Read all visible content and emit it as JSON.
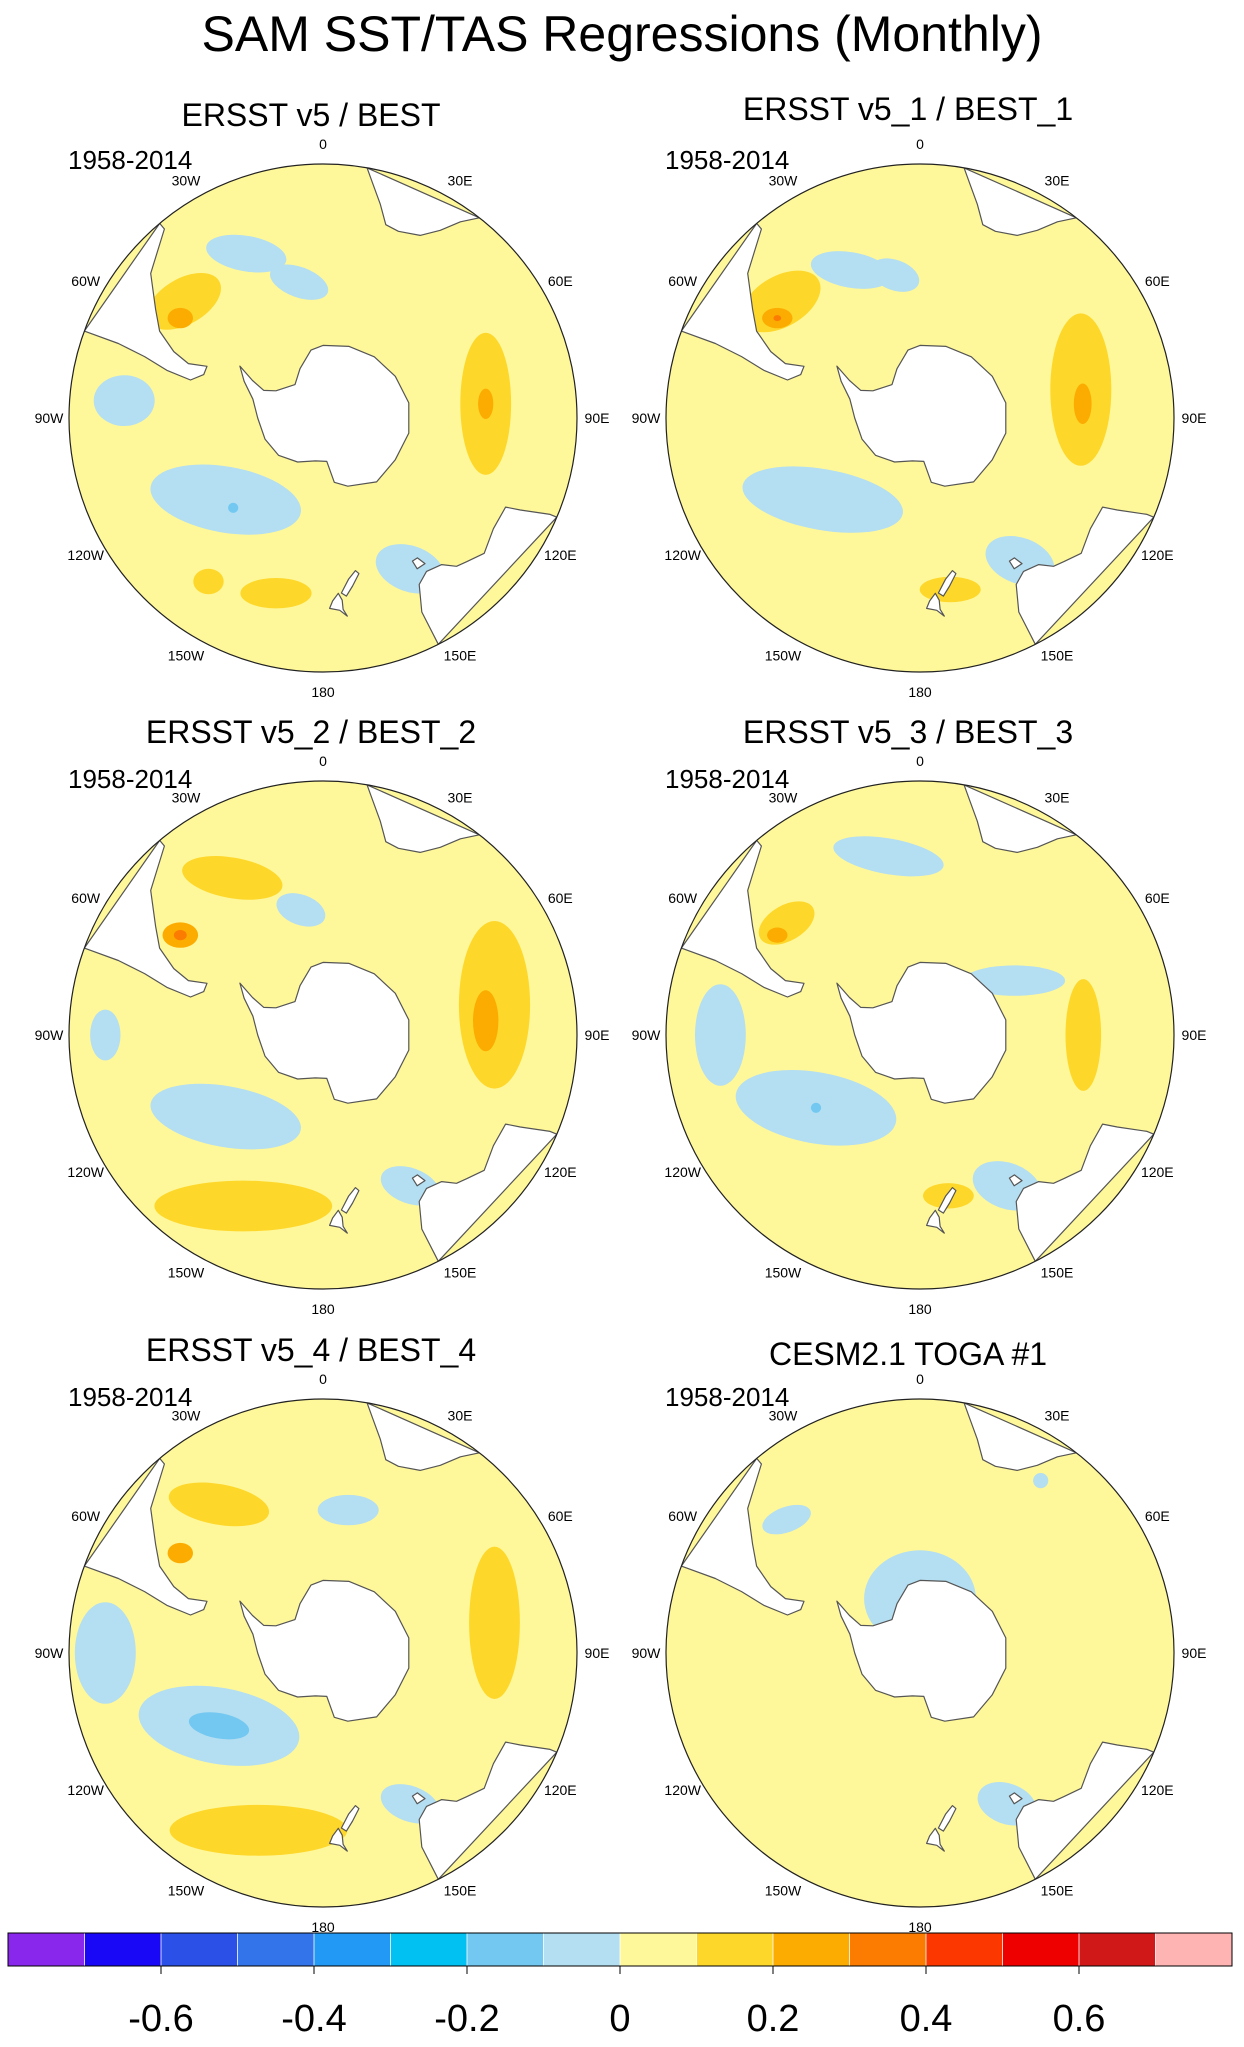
{
  "title": "SAM SST/TAS Regressions (Monthly)",
  "chart_data": [
    {
      "type": "heatmap",
      "projection": "south-polar-stereographic",
      "title": "ERSST v5 / BEST",
      "period": "1958-2014",
      "longitude_labels": [
        "0",
        "30E",
        "60E",
        "90E",
        "120E",
        "150E",
        "180",
        "150W",
        "120W",
        "90W",
        "60W",
        "30W"
      ],
      "features": [
        {
          "kind": "blob",
          "lon": -25,
          "lat": -40,
          "rx": 0.16,
          "ry": 0.07,
          "rot": 10,
          "level": -0.1
        },
        {
          "kind": "blob",
          "lon": -50,
          "lat": -40,
          "rx": 0.16,
          "ry": 0.09,
          "rot": -30,
          "level": 0.1
        },
        {
          "kind": "blob",
          "lon": -55,
          "lat": -42,
          "rx": 0.05,
          "ry": 0.04,
          "rot": 0,
          "level": 0.2
        },
        {
          "kind": "blob",
          "lon": -10,
          "lat": -52,
          "rx": 0.12,
          "ry": 0.06,
          "rot": 20,
          "level": -0.1
        },
        {
          "kind": "blob",
          "lon": -85,
          "lat": -35,
          "rx": 0.12,
          "ry": 0.1,
          "rot": 0,
          "level": -0.1
        },
        {
          "kind": "blob",
          "lon": -130,
          "lat": -55,
          "rx": 0.3,
          "ry": 0.13,
          "rot": 10,
          "level": -0.1
        },
        {
          "kind": "blob",
          "lon": -135,
          "lat": -55,
          "rx": 0.02,
          "ry": 0.02,
          "rot": 0,
          "level": -0.2
        },
        {
          "kind": "blob",
          "lon": 85,
          "lat": -45,
          "rx": 0.1,
          "ry": 0.28,
          "rot": 0,
          "level": 0.1
        },
        {
          "kind": "blob",
          "lon": 85,
          "lat": -45,
          "rx": 0.03,
          "ry": 0.06,
          "rot": 0,
          "level": 0.2
        },
        {
          "kind": "blob",
          "lon": 150,
          "lat": -42,
          "rx": 0.14,
          "ry": 0.09,
          "rot": 20,
          "level": -0.1
        },
        {
          "kind": "blob",
          "lon": -165,
          "lat": -40,
          "rx": 0.14,
          "ry": 0.06,
          "rot": 0,
          "level": 0.1
        },
        {
          "kind": "blob",
          "lon": -145,
          "lat": -35,
          "rx": 0.06,
          "ry": 0.05,
          "rot": 0,
          "level": 0.1
        }
      ]
    },
    {
      "type": "heatmap",
      "projection": "south-polar-stereographic",
      "title": "ERSST v5_1 / BEST_1",
      "period": "1958-2014",
      "longitude_labels": [
        "0",
        "30E",
        "60E",
        "90E",
        "120E",
        "150E",
        "180",
        "150W",
        "120W",
        "90W",
        "60W",
        "30W"
      ],
      "features": [
        {
          "kind": "blob",
          "lon": -25,
          "lat": -45,
          "rx": 0.16,
          "ry": 0.07,
          "rot": 10,
          "level": -0.1
        },
        {
          "kind": "blob",
          "lon": -50,
          "lat": -40,
          "rx": 0.17,
          "ry": 0.1,
          "rot": -30,
          "level": 0.1
        },
        {
          "kind": "blob",
          "lon": -55,
          "lat": -42,
          "rx": 0.06,
          "ry": 0.04,
          "rot": 0,
          "level": 0.2
        },
        {
          "kind": "blob",
          "lon": -55,
          "lat": -42,
          "rx": 0.015,
          "ry": 0.012,
          "rot": 0,
          "level": 0.3
        },
        {
          "kind": "blob",
          "lon": -10,
          "lat": -50,
          "rx": 0.1,
          "ry": 0.06,
          "rot": 20,
          "level": -0.1
        },
        {
          "kind": "blob",
          "lon": -130,
          "lat": -55,
          "rx": 0.32,
          "ry": 0.12,
          "rot": 10,
          "level": -0.1
        },
        {
          "kind": "blob",
          "lon": 80,
          "lat": -45,
          "rx": 0.12,
          "ry": 0.3,
          "rot": 0,
          "level": 0.1
        },
        {
          "kind": "blob",
          "lon": 85,
          "lat": -45,
          "rx": 0.035,
          "ry": 0.08,
          "rot": 0,
          "level": 0.2
        },
        {
          "kind": "blob",
          "lon": 145,
          "lat": -42,
          "rx": 0.14,
          "ry": 0.09,
          "rot": 20,
          "level": -0.1
        },
        {
          "kind": "blob",
          "lon": 170,
          "lat": -42,
          "rx": 0.12,
          "ry": 0.05,
          "rot": 0,
          "level": 0.1
        }
      ]
    },
    {
      "type": "heatmap",
      "projection": "south-polar-stereographic",
      "title": "ERSST v5_2 / BEST_2",
      "period": "1958-2014",
      "longitude_labels": [
        "0",
        "30E",
        "60E",
        "90E",
        "120E",
        "150E",
        "180",
        "150W",
        "120W",
        "90W",
        "60W",
        "30W"
      ],
      "features": [
        {
          "kind": "blob",
          "lon": -30,
          "lat": -40,
          "rx": 0.2,
          "ry": 0.08,
          "rot": 10,
          "level": 0.1
        },
        {
          "kind": "blob",
          "lon": -55,
          "lat": -42,
          "rx": 0.07,
          "ry": 0.05,
          "rot": 0,
          "level": 0.2
        },
        {
          "kind": "blob",
          "lon": -55,
          "lat": -42,
          "rx": 0.025,
          "ry": 0.02,
          "rot": 0,
          "level": 0.3
        },
        {
          "kind": "blob",
          "lon": -10,
          "lat": -55,
          "rx": 0.1,
          "ry": 0.06,
          "rot": 20,
          "level": -0.1
        },
        {
          "kind": "blob",
          "lon": -90,
          "lat": -30,
          "rx": 0.06,
          "ry": 0.1,
          "rot": 0,
          "level": -0.1
        },
        {
          "kind": "blob",
          "lon": -130,
          "lat": -55,
          "rx": 0.3,
          "ry": 0.12,
          "rot": 10,
          "level": -0.1
        },
        {
          "kind": "blob",
          "lon": 80,
          "lat": -42,
          "rx": 0.14,
          "ry": 0.33,
          "rot": 0,
          "level": 0.1
        },
        {
          "kind": "blob",
          "lon": 85,
          "lat": -45,
          "rx": 0.05,
          "ry": 0.12,
          "rot": 0,
          "level": 0.2
        },
        {
          "kind": "blob",
          "lon": -155,
          "lat": -38,
          "rx": 0.35,
          "ry": 0.1,
          "rot": 0,
          "level": 0.1
        },
        {
          "kind": "blob",
          "lon": 150,
          "lat": -42,
          "rx": 0.12,
          "ry": 0.07,
          "rot": 20,
          "level": -0.1
        }
      ]
    },
    {
      "type": "heatmap",
      "projection": "south-polar-stereographic",
      "title": "ERSST v5_3 / BEST_3",
      "period": "1958-2014",
      "longitude_labels": [
        "0",
        "30E",
        "60E",
        "90E",
        "120E",
        "150E",
        "180",
        "150W",
        "120W",
        "90W",
        "60W",
        "30W"
      ],
      "features": [
        {
          "kind": "blob",
          "lon": -10,
          "lat": -40,
          "rx": 0.22,
          "ry": 0.07,
          "rot": 10,
          "level": -0.1
        },
        {
          "kind": "blob",
          "lon": -50,
          "lat": -42,
          "rx": 0.12,
          "ry": 0.07,
          "rot": -30,
          "level": 0.1
        },
        {
          "kind": "blob",
          "lon": -55,
          "lat": -42,
          "rx": 0.04,
          "ry": 0.03,
          "rot": 0,
          "level": 0.2
        },
        {
          "kind": "blob",
          "lon": -90,
          "lat": -35,
          "rx": 0.1,
          "ry": 0.2,
          "rot": 0,
          "level": -0.1
        },
        {
          "kind": "blob",
          "lon": -125,
          "lat": -55,
          "rx": 0.32,
          "ry": 0.14,
          "rot": 10,
          "level": -0.1
        },
        {
          "kind": "blob",
          "lon": -125,
          "lat": -55,
          "rx": 0.02,
          "ry": 0.02,
          "rot": 0,
          "level": -0.2
        },
        {
          "kind": "blob",
          "lon": 90,
          "lat": -45,
          "rx": 0.07,
          "ry": 0.22,
          "rot": 0,
          "level": 0.1
        },
        {
          "kind": "blob",
          "lon": 150,
          "lat": -42,
          "rx": 0.14,
          "ry": 0.09,
          "rot": 20,
          "level": -0.1
        },
        {
          "kind": "blob",
          "lon": 170,
          "lat": -45,
          "rx": 0.1,
          "ry": 0.05,
          "rot": 0,
          "level": 0.1
        },
        {
          "kind": "blob",
          "lon": 60,
          "lat": -60,
          "rx": 0.2,
          "ry": 0.06,
          "rot": 0,
          "level": -0.1
        }
      ]
    },
    {
      "type": "heatmap",
      "projection": "south-polar-stereographic",
      "title": "ERSST v5_4 / BEST_4",
      "period": "1958-2014",
      "longitude_labels": [
        "0",
        "30E",
        "60E",
        "90E",
        "120E",
        "150E",
        "180",
        "150W",
        "120W",
        "90W",
        "60W",
        "30W"
      ],
      "features": [
        {
          "kind": "blob",
          "lon": -35,
          "lat": -40,
          "rx": 0.2,
          "ry": 0.08,
          "rot": 10,
          "level": 0.1
        },
        {
          "kind": "blob",
          "lon": -55,
          "lat": -42,
          "rx": 0.05,
          "ry": 0.04,
          "rot": 0,
          "level": 0.2
        },
        {
          "kind": "blob",
          "lon": -90,
          "lat": -30,
          "rx": 0.12,
          "ry": 0.2,
          "rot": 0,
          "level": -0.1
        },
        {
          "kind": "blob",
          "lon": -125,
          "lat": -55,
          "rx": 0.32,
          "ry": 0.15,
          "rot": 10,
          "level": -0.1
        },
        {
          "kind": "blob",
          "lon": -125,
          "lat": -55,
          "rx": 0.12,
          "ry": 0.05,
          "rot": 10,
          "level": -0.2
        },
        {
          "kind": "blob",
          "lon": 80,
          "lat": -42,
          "rx": 0.1,
          "ry": 0.3,
          "rot": 0,
          "level": 0.1
        },
        {
          "kind": "blob",
          "lon": -160,
          "lat": -38,
          "rx": 0.35,
          "ry": 0.1,
          "rot": 0,
          "level": 0.1
        },
        {
          "kind": "blob",
          "lon": 150,
          "lat": -42,
          "rx": 0.12,
          "ry": 0.07,
          "rot": 20,
          "level": -0.1
        },
        {
          "kind": "blob",
          "lon": 10,
          "lat": -50,
          "rx": 0.12,
          "ry": 0.06,
          "rot": 0,
          "level": -0.1
        }
      ]
    },
    {
      "type": "heatmap",
      "projection": "south-polar-stereographic",
      "title": "CESM2.1 TOGA #1",
      "period": "1958-2014",
      "longitude_labels": [
        "0",
        "30E",
        "60E",
        "90E",
        "120E",
        "150E",
        "180",
        "150W",
        "120W",
        "90W",
        "60W",
        "30W"
      ],
      "features": [
        {
          "kind": "blob",
          "lon": 0,
          "lat": -75,
          "rx": 0.22,
          "ry": 0.19,
          "rot": 0,
          "level": -0.1
        },
        {
          "kind": "blob",
          "lon": 90,
          "lat": -72,
          "rx": 0.03,
          "ry": 0.02,
          "rot": 0,
          "level": -0.2
        },
        {
          "kind": "blob",
          "lon": -45,
          "lat": -38,
          "rx": 0.1,
          "ry": 0.05,
          "rot": -20,
          "level": -0.1
        },
        {
          "kind": "blob",
          "lon": 150,
          "lat": -42,
          "rx": 0.12,
          "ry": 0.08,
          "rot": 20,
          "level": -0.1
        },
        {
          "kind": "blob",
          "lon": 35,
          "lat": -32,
          "rx": 0.03,
          "ry": 0.03,
          "rot": 0,
          "level": -0.1
        }
      ]
    }
  ],
  "colorbar": {
    "levels": [
      -0.7,
      -0.6,
      -0.5,
      -0.4,
      -0.3,
      -0.2,
      -0.1,
      0,
      0.1,
      0.2,
      0.3,
      0.4,
      0.5,
      0.6,
      0.7
    ],
    "colors": [
      "#8a27ec",
      "#1808f6",
      "#2a50e8",
      "#3374ea",
      "#2199f5",
      "#00c1f2",
      "#73c8f1",
      "#b4def1",
      "#fff89a",
      "#fed72b",
      "#fcab00",
      "#fb7c00",
      "#fd3700",
      "#ef0000",
      "#d01818",
      "#ffb4b4"
    ],
    "tick_labels": [
      "-0.6",
      "-0.4",
      "-0.2",
      "0",
      "0.2",
      "0.4",
      "0.6"
    ],
    "tick_values": [
      -0.6,
      -0.4,
      -0.2,
      0,
      0.2,
      0.4,
      0.6
    ]
  }
}
